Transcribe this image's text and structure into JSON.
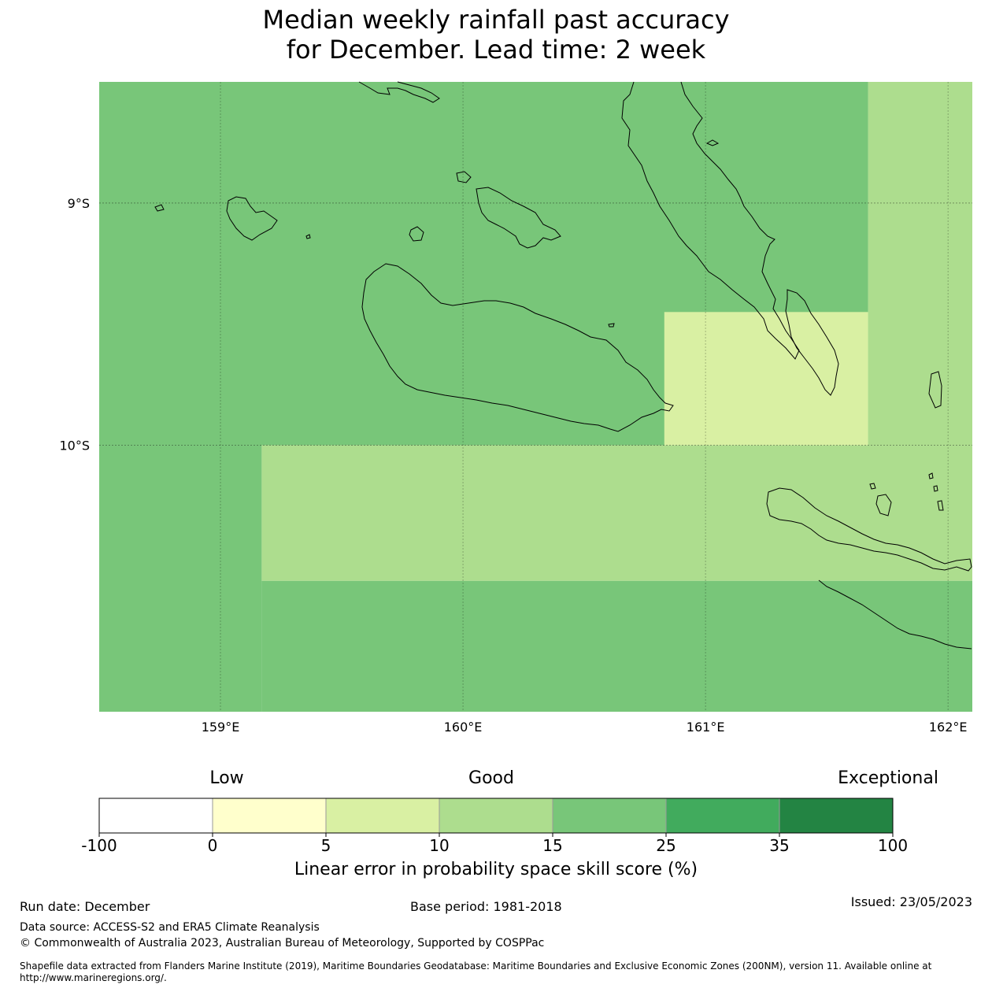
{
  "title": {
    "line1": "Median weekly rainfall past accuracy",
    "line2": "for December. Lead time: 2 week"
  },
  "map": {
    "lon_range": [
      158.5,
      162.1
    ],
    "lat_range": [
      -11.1,
      -8.5
    ],
    "lon_ticks": [
      {
        "value": 159,
        "label": "159°E"
      },
      {
        "value": 160,
        "label": "160°E"
      },
      {
        "value": 161,
        "label": "161°E"
      },
      {
        "value": 162,
        "label": "162°E"
      }
    ],
    "lat_ticks": [
      {
        "value": -9,
        "label": "9°S"
      },
      {
        "value": -10,
        "label": "10°S"
      }
    ],
    "cells": [
      {
        "lon": [
          158.5,
          161.67
        ],
        "lat": [
          -10.0,
          -8.5
        ],
        "category": "15 to 25",
        "color": "#78c679"
      },
      {
        "lon": [
          161.67,
          162.1
        ],
        "lat": [
          -10.0,
          -8.5
        ],
        "category": "10 to 15",
        "color": "#addd8e"
      },
      {
        "lon": [
          160.83,
          161.67
        ],
        "lat": [
          -10.0,
          -9.45
        ],
        "category": "5 to 10",
        "color": "#d9f0a3"
      },
      {
        "lon": [
          158.5,
          159.17
        ],
        "lat": [
          -11.1,
          -10.0
        ],
        "category": "15 to 25",
        "color": "#78c679"
      },
      {
        "lon": [
          159.17,
          162.1
        ],
        "lat": [
          -10.56,
          -10.0
        ],
        "category": "10 to 15",
        "color": "#addd8e"
      },
      {
        "lon": [
          159.17,
          162.1
        ],
        "lat": [
          -11.1,
          -10.56
        ],
        "category": "15 to 25",
        "color": "#78c679"
      }
    ]
  },
  "colorbar": {
    "words": [
      "Low",
      "Good",
      "Exceptional"
    ],
    "bins": [
      {
        "from": "-100",
        "to": "0",
        "color": "#ffffff"
      },
      {
        "from": "0",
        "to": "5",
        "color": "#ffffcc"
      },
      {
        "from": "5",
        "to": "10",
        "color": "#d9f0a3"
      },
      {
        "from": "10",
        "to": "15",
        "color": "#addd8e"
      },
      {
        "from": "15",
        "to": "25",
        "color": "#78c679"
      },
      {
        "from": "25",
        "to": "35",
        "color": "#41ab5d"
      },
      {
        "from": "35",
        "to": "100",
        "color": "#238443"
      }
    ],
    "tick_labels": [
      "-100",
      "0",
      "5",
      "10",
      "15",
      "25",
      "35",
      "100"
    ],
    "label": "Linear error in probability space skill score (%)"
  },
  "footer": {
    "run_date": "Run date: December",
    "base_period": "Base period: 1981-2018",
    "issued": "Issued: 23/05/2023",
    "data_source": "Data source: ACCESS-S2 and ERA5 Climate Reanalysis",
    "copyright": "© Commonwealth of Australia 2023, Australian Bureau of Meteorology, Supported by COSPPac",
    "shapefile": "Shapefile data extracted from Flanders Marine Institute (2019), Maritime Boundaries Geodatabase: Maritime Boundaries and Exclusive Economic Zones (200NM), version 11. Available online at http://www.marineregions.org/."
  }
}
